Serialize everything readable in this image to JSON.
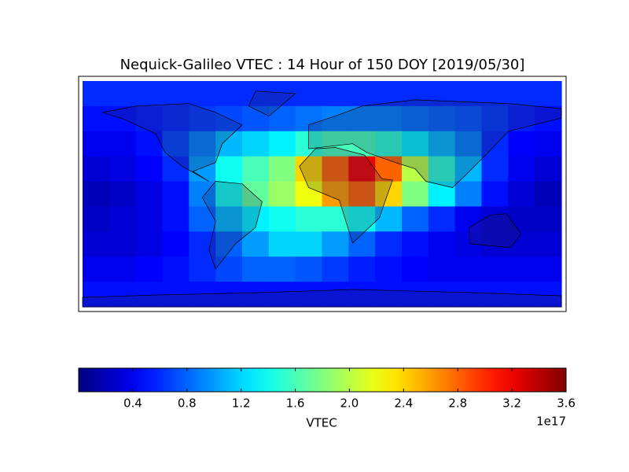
{
  "chart_data": {
    "type": "heatmap",
    "title": "Nequick-Galileo VTEC : 14 Hour of 150 DOY [2019/05/30]",
    "colormap": "jet",
    "clim": [
      0,
      3.6
    ],
    "colorbar_ticks": [
      0.4,
      0.8,
      1.2,
      1.6,
      {
        "value": 2,
        "label": "2.0"
      },
      2.4,
      2.8,
      3.2,
      3.6
    ],
    "colorbar_label": "VTEC",
    "colorbar_offset_label": "1e17",
    "values": [
      [
        0.6,
        0.6,
        0.6,
        0.6,
        0.6,
        0.6,
        0.6,
        0.6,
        0.6,
        0.6,
        0.6,
        0.6,
        0.6,
        0.6,
        0.6,
        0.6,
        0.6,
        0.6
      ],
      [
        0.5,
        0.5,
        0.55,
        0.6,
        0.65,
        0.7,
        0.75,
        0.8,
        0.85,
        0.9,
        0.9,
        0.9,
        0.85,
        0.8,
        0.75,
        0.65,
        0.55,
        0.5
      ],
      [
        0.4,
        0.4,
        0.5,
        0.7,
        0.9,
        1.1,
        1.2,
        1.3,
        1.5,
        1.6,
        1.6,
        1.5,
        1.3,
        1.1,
        0.9,
        0.6,
        0.45,
        0.4
      ],
      [
        0.3,
        0.35,
        0.45,
        0.6,
        1.0,
        1.4,
        1.6,
        1.8,
        2.4,
        2.8,
        3.2,
        2.8,
        2.0,
        1.5,
        1.1,
        0.6,
        0.4,
        0.3
      ],
      [
        0.2,
        0.25,
        0.35,
        0.5,
        0.9,
        1.4,
        1.7,
        1.9,
        2.2,
        2.6,
        2.8,
        2.4,
        1.8,
        1.3,
        0.9,
        0.5,
        0.3,
        0.2
      ],
      [
        0.25,
        0.3,
        0.35,
        0.5,
        0.8,
        1.1,
        1.3,
        1.4,
        1.5,
        1.5,
        1.4,
        1.1,
        0.8,
        0.6,
        0.4,
        0.3,
        0.25,
        0.25
      ],
      [
        0.3,
        0.3,
        0.35,
        0.45,
        0.6,
        0.8,
        1.0,
        1.2,
        1.2,
        1.0,
        0.8,
        0.6,
        0.5,
        0.4,
        0.35,
        0.3,
        0.3,
        0.3
      ],
      [
        0.4,
        0.4,
        0.45,
        0.5,
        0.6,
        0.7,
        0.8,
        0.8,
        0.75,
        0.65,
        0.55,
        0.5,
        0.45,
        0.4,
        0.4,
        0.4,
        0.4,
        0.4
      ],
      [
        0.5,
        0.5,
        0.5,
        0.5,
        0.5,
        0.5,
        0.5,
        0.5,
        0.5,
        0.5,
        0.5,
        0.5,
        0.5,
        0.5,
        0.5,
        0.5,
        0.5,
        0.5
      ]
    ]
  }
}
